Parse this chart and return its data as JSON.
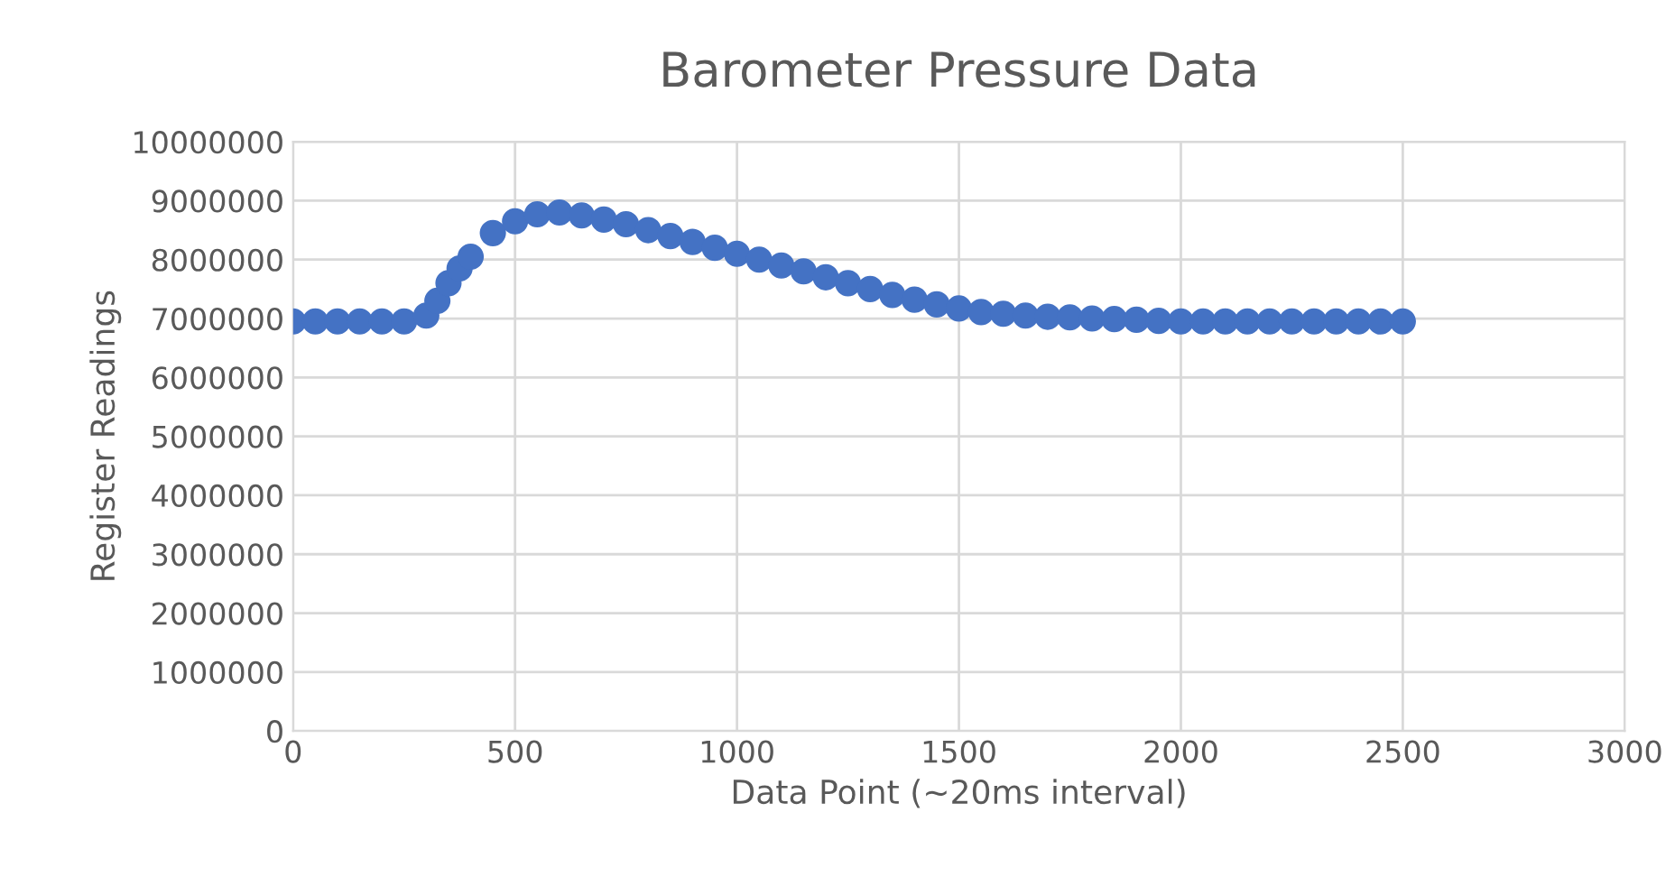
{
  "chart_data": {
    "type": "scatter",
    "title": "Barometer Pressure Data",
    "xlabel": "Data Point (~20ms interval)",
    "ylabel": "Register Readings",
    "x": [
      0,
      50,
      100,
      150,
      200,
      250,
      300,
      325,
      350,
      375,
      400,
      450,
      500,
      550,
      600,
      650,
      700,
      750,
      800,
      850,
      900,
      950,
      1000,
      1050,
      1100,
      1150,
      1200,
      1250,
      1300,
      1350,
      1400,
      1450,
      1500,
      1550,
      1600,
      1650,
      1700,
      1750,
      1800,
      1850,
      1900,
      1950,
      2000,
      2050,
      2100,
      2150,
      2200,
      2250,
      2300,
      2350,
      2400,
      2450,
      2500
    ],
    "series": [
      {
        "color": "#4472c4",
        "values": [
          6950000,
          6950000,
          6950000,
          6950000,
          6950000,
          6950000,
          7050000,
          7300000,
          7600000,
          7850000,
          8050000,
          8450000,
          8650000,
          8770000,
          8800000,
          8750000,
          8680000,
          8600000,
          8500000,
          8400000,
          8300000,
          8200000,
          8100000,
          8000000,
          7900000,
          7800000,
          7700000,
          7600000,
          7500000,
          7400000,
          7320000,
          7240000,
          7170000,
          7110000,
          7080000,
          7050000,
          7030000,
          7020000,
          7000000,
          6990000,
          6980000,
          6960000,
          6950000,
          6950000,
          6950000,
          6950000,
          6950000,
          6950000,
          6950000,
          6950000,
          6950000,
          6950000,
          6950000
        ]
      }
    ],
    "xlim": [
      0,
      3000
    ],
    "xticks": [
      0,
      500,
      1000,
      1500,
      2000,
      2500,
      3000
    ],
    "ylim": [
      0,
      10000000
    ],
    "yticks": [
      0,
      1000000,
      2000000,
      3000000,
      4000000,
      5000000,
      6000000,
      7000000,
      8000000,
      9000000,
      10000000
    ],
    "grid": true,
    "marker": "circle"
  }
}
